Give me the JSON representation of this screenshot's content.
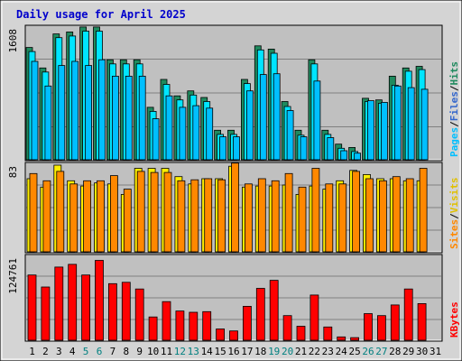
{
  "colors": {
    "frame_outer": "#d4d4d4",
    "panel_bg": "#c0c0c0",
    "grid": "#808080",
    "title": "#0000cc",
    "hits": "#1f8a5e",
    "files": "#00e5ff",
    "pages": "#00bfff",
    "visits": "#ff8800",
    "sites": "#ffee00",
    "kbytes": "#ff0000",
    "day_normal": "#000000",
    "day_weekend": "#008080"
  },
  "chart_data": {
    "type": "bar",
    "title": "Daily usage for April 2025",
    "days": [
      "1",
      "2",
      "3",
      "4",
      "5",
      "6",
      "7",
      "8",
      "9",
      "10",
      "11",
      "12",
      "13",
      "14",
      "15",
      "16",
      "17",
      "18",
      "19",
      "20",
      "21",
      "22",
      "23",
      "24",
      "25",
      "26",
      "27",
      "28",
      "29",
      "30",
      "31"
    ],
    "weekend_days": [
      "5",
      "6",
      "12",
      "13",
      "19",
      "20",
      "26",
      "27"
    ],
    "panels": [
      {
        "id": "hits_files_pages",
        "ymax_label": "1608",
        "ymax": 1608,
        "legend": [
          "Pages",
          "/",
          "Files",
          "/",
          "Hits"
        ],
        "series": [
          {
            "name": "Hits",
            "values": [
              1370,
              1120,
              1535,
              1560,
              1620,
              1620,
              1220,
              1220,
              1220,
              640,
              980,
              780,
              840,
              760,
              360,
              360,
              980,
              1390,
              1350,
              710,
              360,
              1220,
              360,
              190,
              150,
              750,
              730,
              1020,
              1120,
              1140,
              0
            ]
          },
          {
            "name": "Files",
            "values": [
              1320,
              1070,
              1490,
              1510,
              1570,
              1570,
              1170,
              1170,
              1170,
              590,
              920,
              730,
              790,
              710,
              310,
              310,
              930,
              1340,
              1300,
              650,
              300,
              1170,
              310,
              140,
              100,
              710,
              690,
              910,
              1080,
              1100,
              0
            ]
          },
          {
            "name": "Pages",
            "values": [
              1200,
              900,
              1150,
              1200,
              1150,
              1220,
              1020,
              1020,
              1020,
              500,
              780,
              640,
              660,
              630,
              280,
              280,
              840,
              1040,
              1050,
              600,
              280,
              960,
              270,
              110,
              80,
              720,
              700,
              900,
              880,
              860,
              0
            ]
          }
        ]
      },
      {
        "id": "visits_sites",
        "ymax_label": "83",
        "ymax": 83,
        "legend": [
          "Sites",
          "/",
          "Visits"
        ],
        "series": [
          {
            "name": "Sites",
            "values": [
              70,
              62,
              83,
              68,
              63,
              66,
              65,
              55,
              80,
              80,
              80,
              72,
              65,
              70,
              70,
              82,
              62,
              63,
              63,
              64,
              55,
              63,
              60,
              68,
              78,
              74,
              70,
              70,
              68,
              68,
              0
            ]
          },
          {
            "name": "Visits",
            "values": [
              75,
              68,
              77,
              65,
              68,
              68,
              73,
              60,
              77,
              76,
              76,
              68,
              69,
              70,
              69,
              85,
              65,
              70,
              68,
              75,
              62,
              80,
              65,
              65,
              77,
              70,
              68,
              72,
              70,
              80,
              0
            ]
          }
        ]
      },
      {
        "id": "kbytes",
        "ymax_label": "124761",
        "ymax": 124761,
        "legend": [
          "KBytes"
        ],
        "series": [
          {
            "name": "KBytes",
            "values": [
              98000,
              80000,
              110000,
              114000,
              98000,
              120000,
              85000,
              87000,
              77000,
              35000,
              58000,
              44000,
              42000,
              43000,
              17000,
              14000,
              51000,
              78000,
              90000,
              37000,
              21000,
              68000,
              20000,
              5000,
              4000,
              40000,
              37000,
              53000,
              77000,
              55000,
              0
            ]
          }
        ]
      }
    ]
  }
}
